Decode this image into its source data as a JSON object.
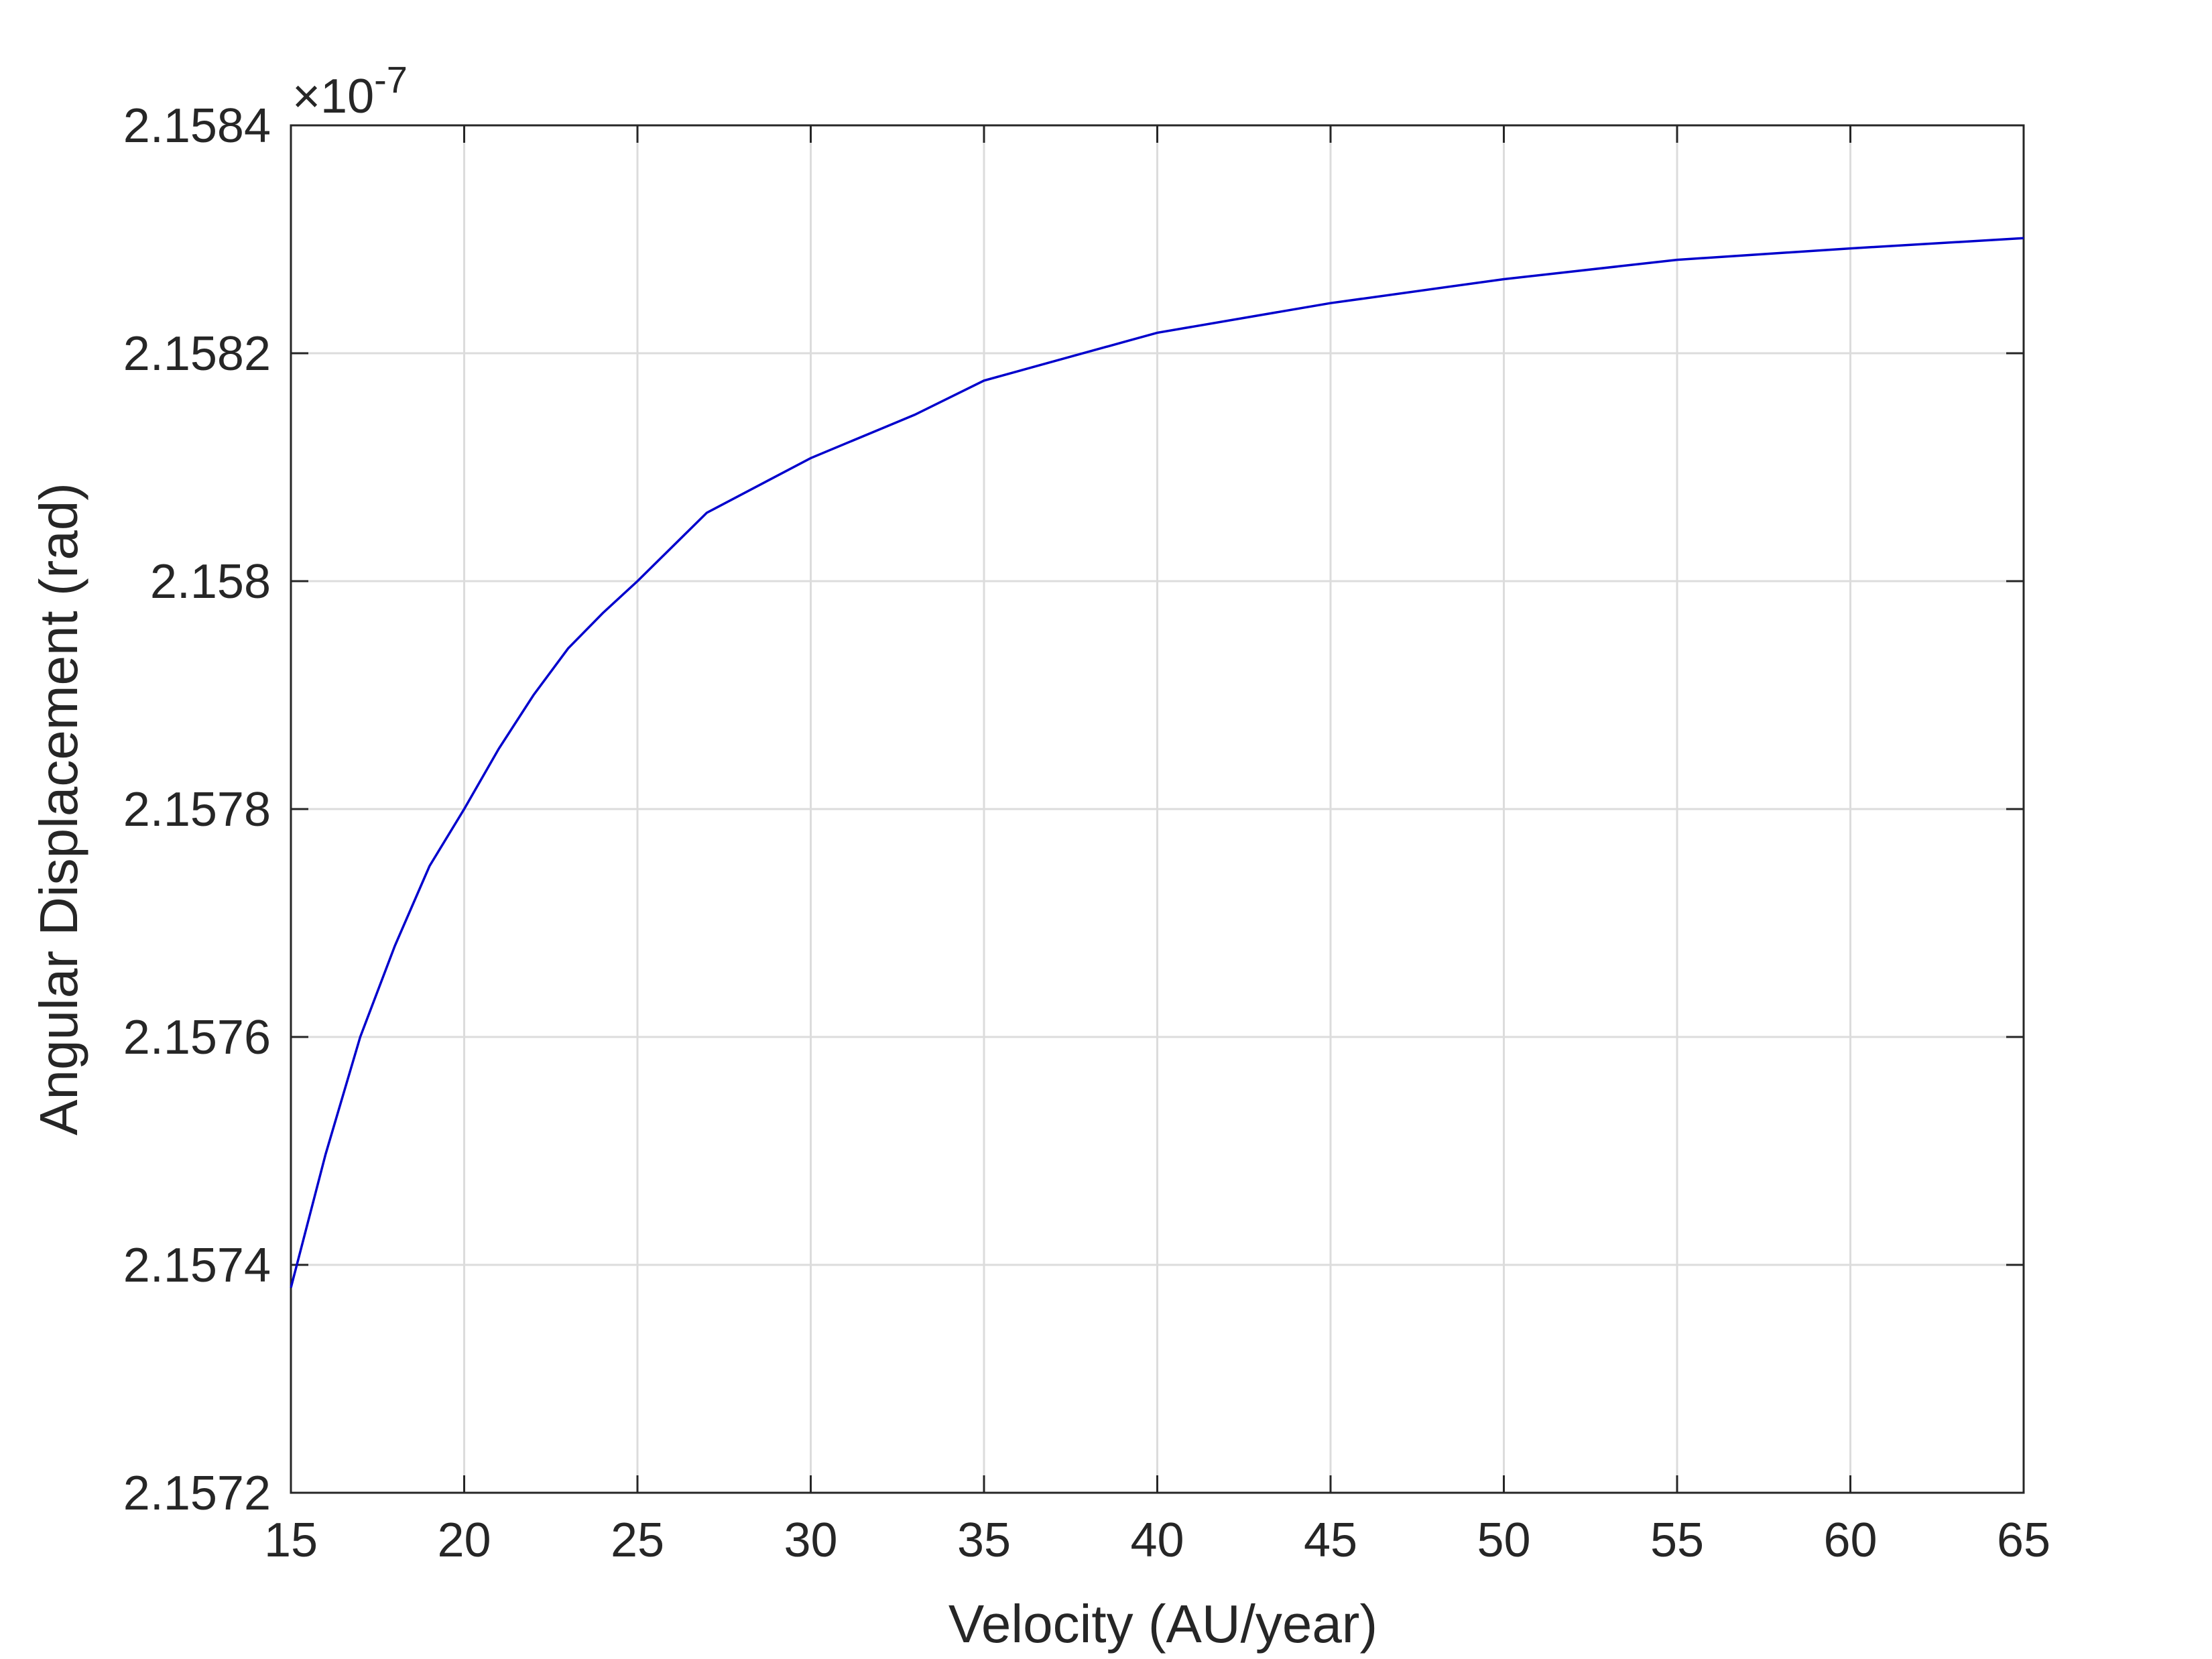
{
  "chart_data": {
    "type": "line",
    "x_label": "Velocity (AU/year)",
    "y_label": "Angular Displacement (rad)",
    "y_scale_label": {
      "base": "×10",
      "exponent": "-7"
    },
    "x": [
      15,
      16,
      17,
      18,
      19,
      20,
      21,
      22,
      23,
      24,
      25,
      27,
      30,
      33,
      35,
      40,
      45,
      50,
      55,
      60,
      65
    ],
    "series": [
      {
        "color": "#0000cc",
        "values": [
          2.15738,
          2.157497,
          2.1576,
          2.15768,
          2.15775,
          2.1578,
          2.157853,
          2.1579,
          2.157941,
          2.157972,
          2.158,
          2.15806,
          2.158108,
          2.158146,
          2.158176,
          2.158218,
          2.158244,
          2.158265,
          2.158282,
          2.158292,
          2.158301
        ]
      }
    ],
    "xlim": [
      15,
      65
    ],
    "xticks": [
      15,
      20,
      25,
      30,
      35,
      40,
      45,
      50,
      55,
      60,
      65
    ],
    "ylim": [
      2.1572,
      2.1584
    ],
    "yticks": [
      2.1572,
      2.1574,
      2.1576,
      2.1578,
      2.158,
      2.1582,
      2.1584
    ],
    "grid": true
  }
}
